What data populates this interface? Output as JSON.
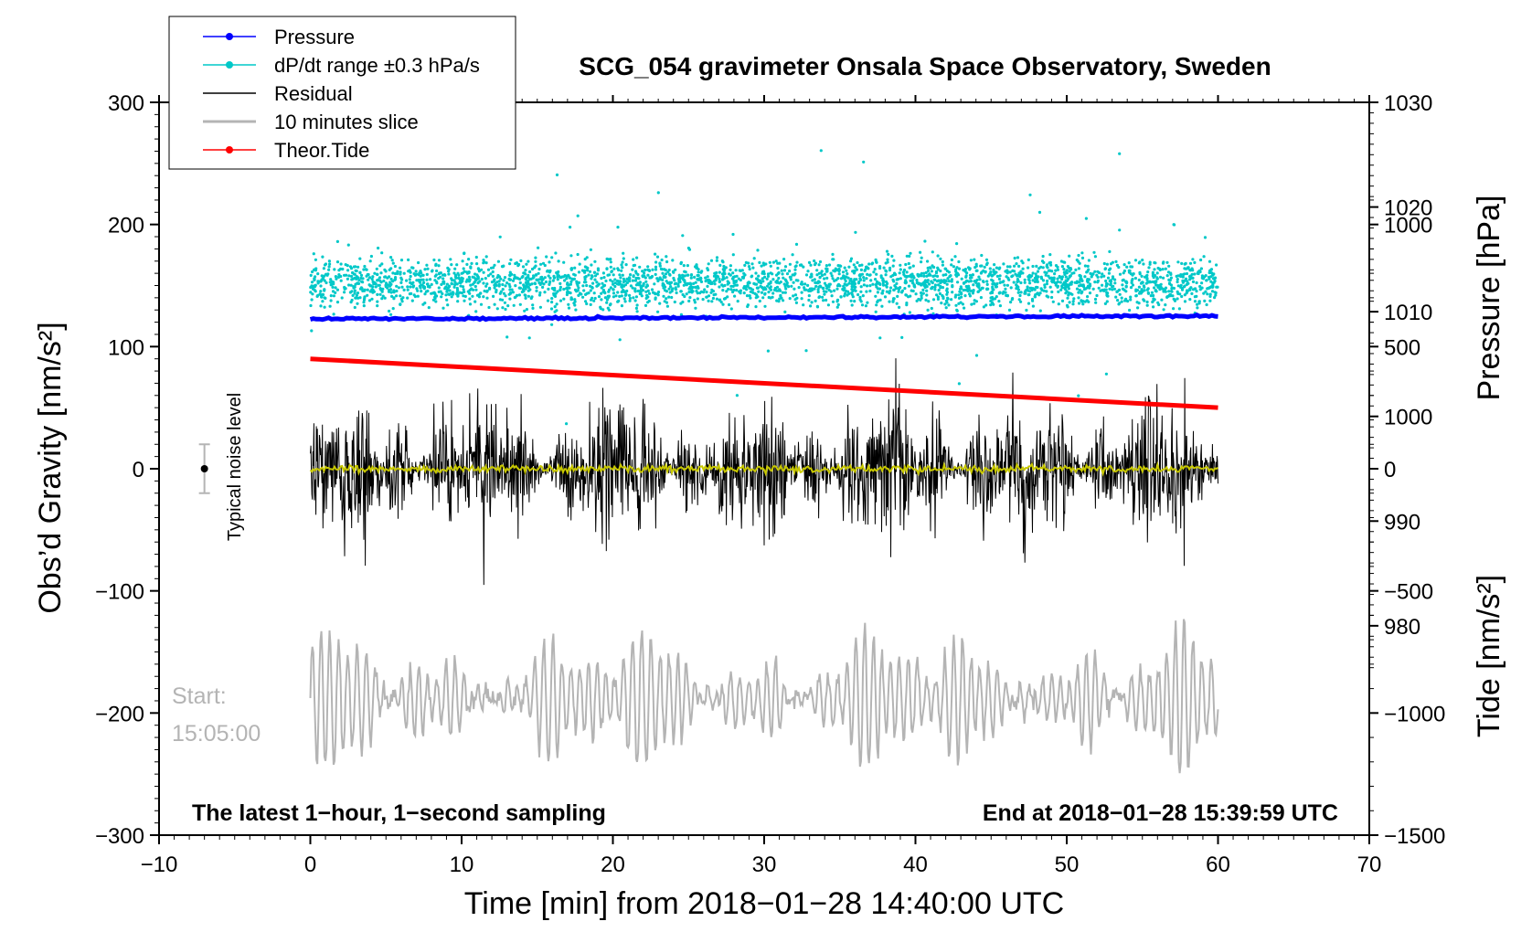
{
  "chart_data": {
    "type": "line",
    "title": "SCG_054 gravimeter Onsala Space Observatory, Sweden",
    "xlabel": "Time [min] from 2018−01−28 14:40:00 UTC",
    "ylabel_left": "Obs’d Gravity [nm/s²]",
    "ylabel_right_top": "Pressure [hPa]",
    "ylabel_right_bottom": "Tide [nm/s²]",
    "xlim": [
      -10,
      70
    ],
    "ylim": [
      -300,
      300
    ],
    "pressure_lim": [
      960,
      1030
    ],
    "tide_lim": [
      -1500,
      1500
    ],
    "x_ticks": [
      "−10",
      "0",
      "10",
      "20",
      "30",
      "40",
      "50",
      "60",
      "70"
    ],
    "x_tick_values": [
      -10,
      0,
      10,
      20,
      30,
      40,
      50,
      60,
      70
    ],
    "y_ticks": [
      "300",
      "200",
      "100",
      "0",
      "−100",
      "−200",
      "−300"
    ],
    "y_tick_values": [
      300,
      200,
      100,
      0,
      -100,
      -200,
      -300
    ],
    "pressure_ticks": [
      "1030",
      "1020",
      "1010",
      "1000",
      "990",
      "980"
    ],
    "pressure_tick_values": [
      1030,
      1020,
      1010,
      1000,
      990,
      980
    ],
    "tide_ticks": [
      "1000",
      "500",
      "0",
      "−500",
      "−1000",
      "−1500"
    ],
    "tide_tick_values": [
      1000,
      500,
      0,
      -500,
      -1000,
      -1500
    ],
    "series": [
      {
        "name": "Pressure",
        "color": "#0000ff",
        "axis": "pressure",
        "x_range": [
          0,
          60
        ],
        "start": 1009.3,
        "end": 1009.6
      },
      {
        "name": "dP/dt range ±0.3 hPa/s",
        "color": "#00c8c8",
        "axis": "gravity",
        "x_range": [
          0,
          60
        ],
        "center": 152,
        "spread": 18
      },
      {
        "name": "Residual",
        "color": "#000000",
        "axis": "gravity",
        "x_range": [
          0,
          60
        ],
        "center": 0,
        "amplitude": 60
      },
      {
        "name": "10 minutes slice",
        "color": "#b4b4b4",
        "axis": "gravity",
        "x_range": [
          0,
          60
        ],
        "center": -188,
        "amplitude": 45
      },
      {
        "name": "Theor.Tide",
        "color": "#ff0000",
        "axis": "tide",
        "x_range": [
          0,
          60
        ],
        "start": 450,
        "end": 250
      }
    ],
    "legend": {
      "position": "top-left",
      "entries": [
        {
          "label": "Pressure",
          "color": "#0000ff"
        },
        {
          "label": "dP/dt range ±0.3 hPa/s",
          "color": "#00c8c8"
        },
        {
          "label": "Residual",
          "color": "#000000"
        },
        {
          "label": "10 minutes slice",
          "color": "#b4b4b4"
        },
        {
          "label": "Theor.Tide",
          "color": "#ff0000"
        }
      ]
    },
    "annotations": {
      "bottom_left": "The latest 1−hour, 1−second sampling",
      "bottom_right": "End at 2018−01−28 15:39:59 UTC",
      "start_label": "Start:",
      "start_time": "15:05:00",
      "noise_label": "Typical noise level",
      "noise_value": 0,
      "noise_range": [
        -20,
        20
      ]
    }
  }
}
